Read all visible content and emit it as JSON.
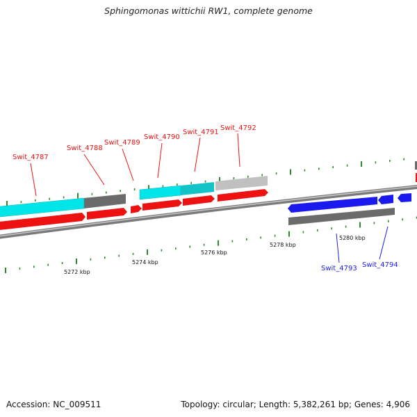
{
  "title": "Sphingomonas wittichii RW1, complete genome",
  "footer": {
    "accession": "Accession: NC_009511",
    "topology": "Topology: circular; Length: 5,382,261 bp; Genes: 4,906"
  },
  "colors": {
    "forward_gene": "#ee1111",
    "reverse_gene": "#1a1aee",
    "cds_feature": "#00e5e8",
    "cds_feature_alt": "#12c3c8",
    "gray_feature": "#6b6b6b",
    "light_gray_feature": "#c0c0c0",
    "backbone": "#8a8a8a",
    "tick": "#2c8a2c"
  },
  "scale_labels": [
    "5272 kbp",
    "5274 kbp",
    "5276 kbp",
    "5278 kbp",
    "5280 kbp"
  ],
  "gene_labels": [
    {
      "text": "Swit_4787",
      "strand": "forward"
    },
    {
      "text": "Swit_4788",
      "strand": "forward"
    },
    {
      "text": "Swit_4789",
      "strand": "forward"
    },
    {
      "text": "Swit_4790",
      "strand": "forward"
    },
    {
      "text": "Swit_4791",
      "strand": "forward"
    },
    {
      "text": "Swit_4792",
      "strand": "forward"
    },
    {
      "text": "Swit_4793",
      "strand": "reverse"
    },
    {
      "text": "Swit_4794",
      "strand": "reverse"
    }
  ]
}
